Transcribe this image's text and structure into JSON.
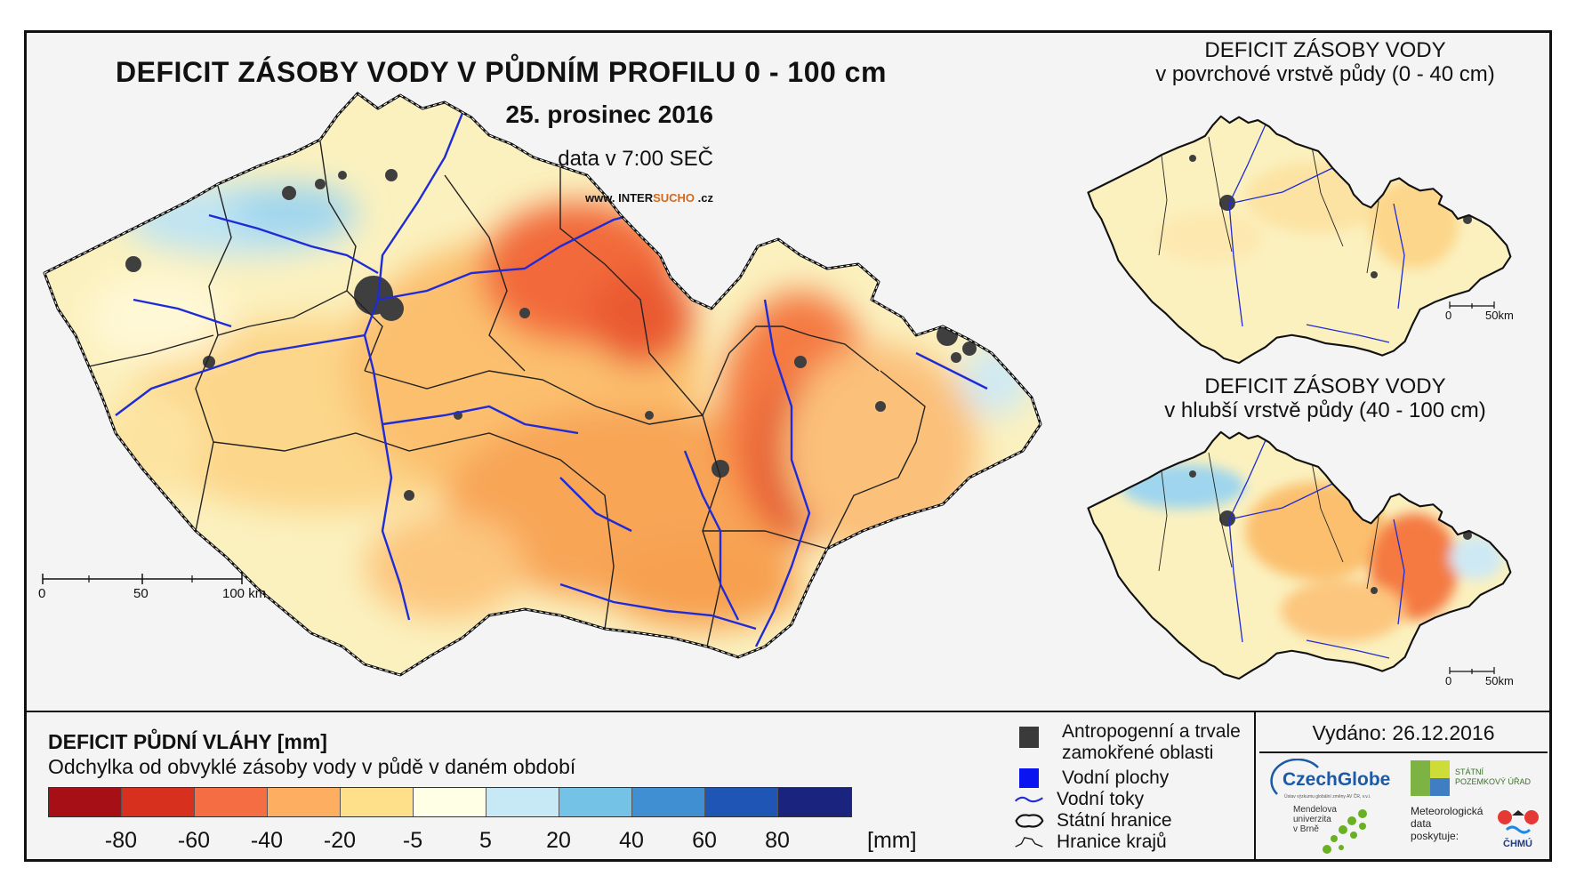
{
  "main": {
    "title": "DEFICIT ZÁSOBY VODY V PŮDNÍM PROFILU 0 - 100 cm",
    "date": "25. prosinec 2016",
    "time": "data v 7:00 SEČ",
    "website_prefix": "www. INTER",
    "website_highlight": "SUCHO",
    "website_suffix": " .cz",
    "scale_labels": [
      "0",
      "50",
      "100 km"
    ]
  },
  "inset_surface": {
    "title_line1": "DEFICIT ZÁSOBY VODY",
    "title_line2": "v povrchové vrstvě půdy (0 - 40 cm)",
    "scale_labels": [
      "0",
      "50km"
    ]
  },
  "inset_deep": {
    "title_line1": "DEFICIT ZÁSOBY VODY",
    "title_line2": "v hlubší vrstvě půdy (40 - 100 cm)",
    "scale_labels": [
      "0",
      "50km"
    ]
  },
  "legend": {
    "title": "DEFICIT PŮDNÍ VLÁHY [mm]",
    "subtitle": "Odchylka od obvyklé zásoby vody v půdě v daném období",
    "colors": [
      "#a50f15",
      "#d7301f",
      "#f46d43",
      "#fdae61",
      "#fee08b",
      "#ffffe5",
      "#c6e9f5",
      "#74c2e6",
      "#3f8fd2",
      "#1f55b4",
      "#1a237e"
    ],
    "ticks": [
      "-80",
      "-60",
      "-40",
      "-20",
      "-5",
      "5",
      "20",
      "40",
      "60",
      "80"
    ],
    "unit": "[mm]"
  },
  "symbols": {
    "anthropogenic_line1": "Antropogenní a trvale",
    "anthropogenic_line2": "zamokřené oblasti",
    "water_bodies": "Vodní plochy",
    "rivers": "Vodní toky",
    "state_border": "Státní hranice",
    "regional_borders": "Hranice krajů"
  },
  "issued": "Vydáno: 26.12.2016",
  "logos": {
    "czechglobe": "CzechGlobe",
    "czechglobe_sub": "Ústav výzkumu globální změny AV ČR, v.v.i.",
    "spu_line1": "STÁTNÍ",
    "spu_line2": "POZEMKOVÝ ÚŘAD",
    "mendel_line1": "Mendelova",
    "mendel_line2": "univerzita",
    "mendel_line3": "v Brně",
    "met_line1": "Meteorologická",
    "met_line2": "data",
    "met_line3": "poskytuje:",
    "chmu": "ČHMÚ"
  }
}
